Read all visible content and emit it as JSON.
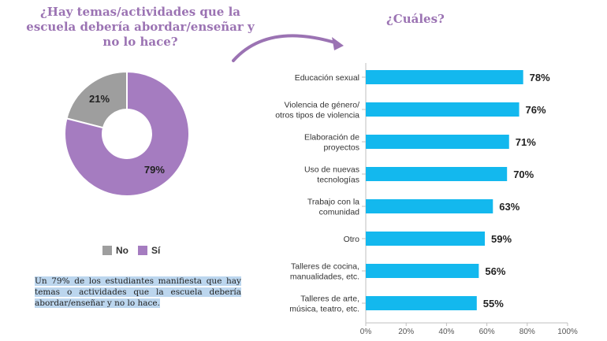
{
  "title_left": "¿Hay temas/actividades que la escuela debería abordar/enseñar y no lo hace?",
  "title_right": "¿Cuáles?",
  "note": "Un 79% de los estudiantes manifiesta que hay temas o actividades que la escuela debería abordar/enseñar y no lo hace.",
  "colors": {
    "accent": "#9b73b3",
    "bar": "#13b8ee",
    "no": "#9e9e9e",
    "si": "#a57cc0"
  },
  "chart_data": [
    {
      "type": "pie",
      "slices": [
        {
          "label": "No",
          "value": 21,
          "display": "21%"
        },
        {
          "label": "Sí",
          "value": 79,
          "display": "79%"
        }
      ]
    },
    {
      "type": "bar",
      "orientation": "horizontal",
      "title": "¿Cuáles?",
      "categories": [
        [
          "Educación sexual"
        ],
        [
          "Violencia de género/",
          "otros tipos de violencia"
        ],
        [
          "Elaboración de",
          "proyectos"
        ],
        [
          "Uso de nuevas",
          "tecnologías"
        ],
        [
          "Trabajo con la",
          "comunidad"
        ],
        [
          "Otro"
        ],
        [
          "Talleres de cocina,",
          "manualidades, etc."
        ],
        [
          "Talleres de arte,",
          "música, teatro, etc."
        ]
      ],
      "values": [
        78,
        76,
        71,
        70,
        63,
        59,
        56,
        55
      ],
      "value_labels": [
        "78%",
        "76%",
        "71%",
        "70%",
        "63%",
        "59%",
        "56%",
        "55%"
      ],
      "xlim": [
        0,
        100
      ],
      "ticks": [
        "0%",
        "20%",
        "40%",
        "60%",
        "80%",
        "100%"
      ]
    }
  ]
}
